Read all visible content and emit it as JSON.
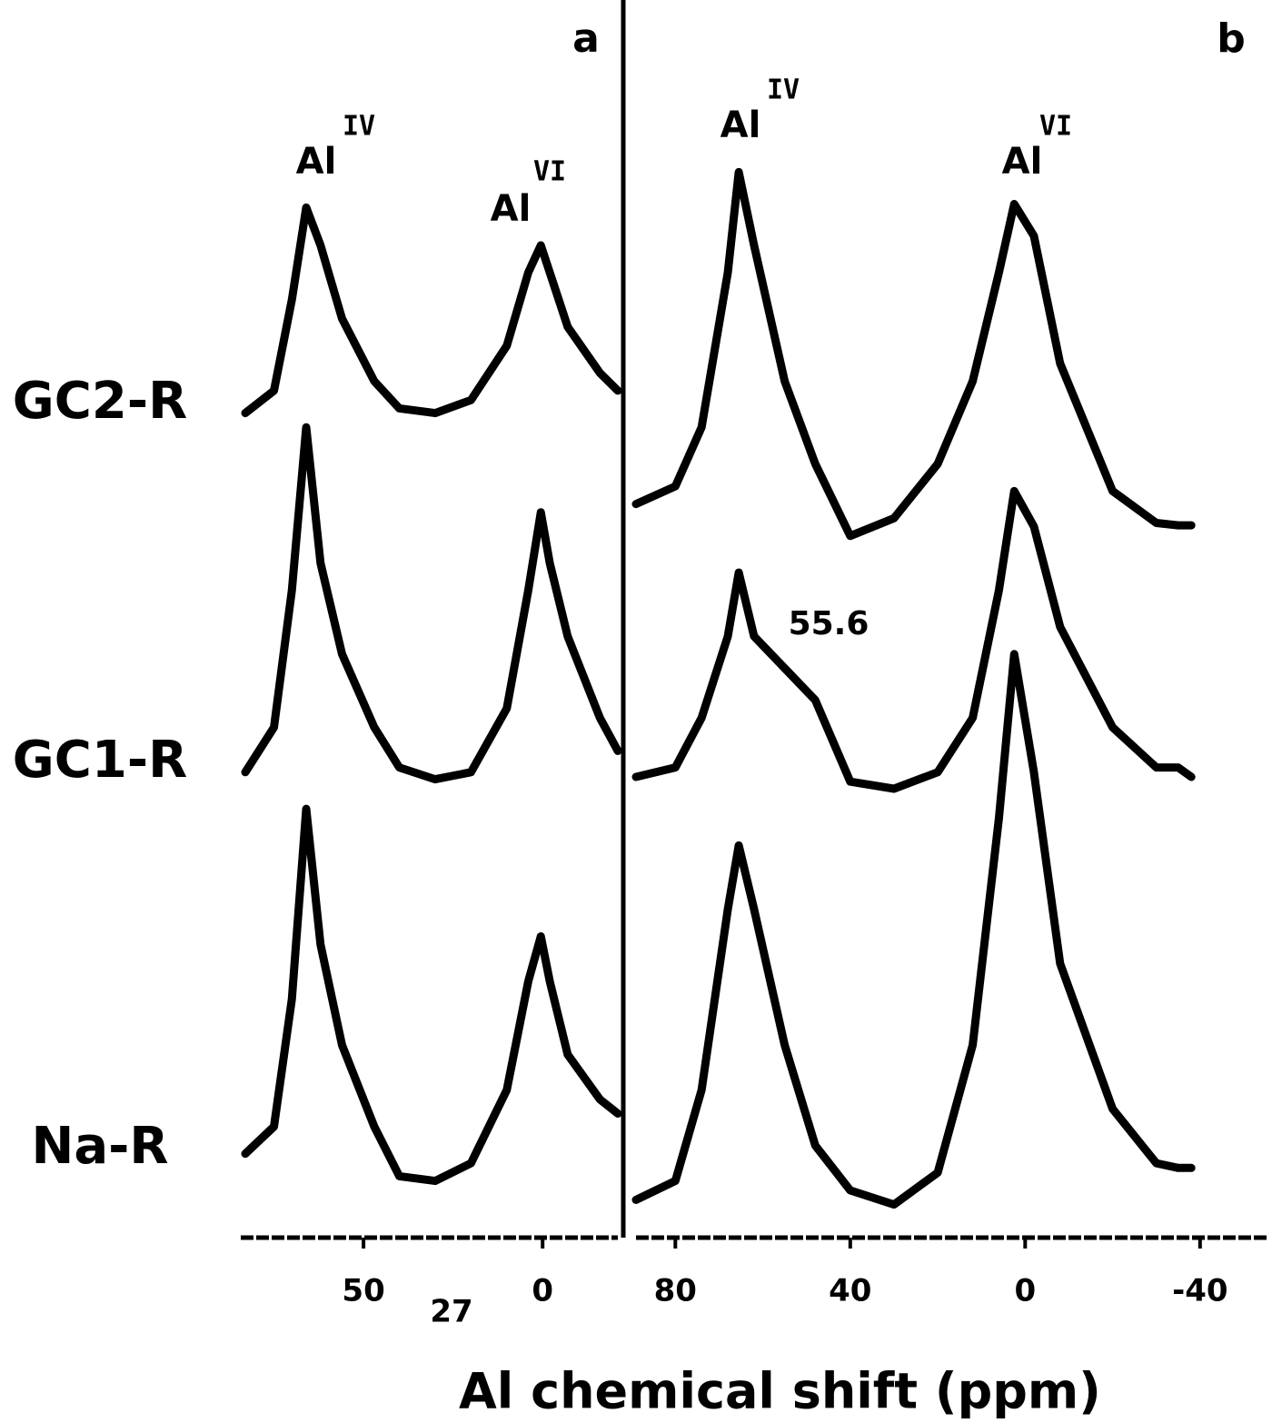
{
  "chart_data": [
    {
      "type": "line",
      "panel": "a",
      "xlabel": "Al chemical shift (ppm)",
      "xlabel_sup": "27",
      "x": [
        83,
        75,
        70,
        66,
        62,
        56,
        47,
        40,
        30,
        20,
        10,
        4,
        0.5,
        -2,
        -7,
        -16,
        -21
      ],
      "xlim": [
        83,
        -21
      ],
      "xticks": [
        50,
        0
      ],
      "ylim": [
        0,
        100
      ],
      "annotations": [
        {
          "text": "Al",
          "sup": "IV"
        },
        {
          "text": "Al",
          "sup": "VI"
        }
      ],
      "series": [
        {
          "name": "GC2-R",
          "color": "#000000",
          "values": [
            69.8,
            71.7,
            79.4,
            87.2,
            84.0,
            77.8,
            72.5,
            70.2,
            69.8,
            70.9,
            75.5,
            81.7,
            84.0,
            81.7,
            77.1,
            73.2,
            71.7
          ]
        },
        {
          "name": "GC1-R",
          "color": "#000000",
          "values": [
            39.4,
            43.2,
            54.8,
            68.6,
            57.1,
            49.4,
            43.2,
            39.8,
            38.8,
            39.4,
            44.8,
            54.8,
            61.4,
            57.1,
            50.9,
            44.0,
            41.2
          ]
        },
        {
          "name": "Na-R",
          "color": "#000000",
          "values": [
            7.1,
            9.4,
            20.2,
            36.3,
            24.8,
            16.3,
            9.4,
            5.2,
            4.8,
            6.3,
            12.5,
            21.7,
            25.5,
            21.7,
            15.5,
            11.7,
            10.5
          ]
        }
      ]
    },
    {
      "type": "line",
      "panel": "b",
      "x": [
        89,
        80,
        74,
        68,
        65.5,
        62,
        55,
        48,
        40,
        30,
        20,
        12,
        6,
        2.5,
        -2,
        -8,
        -20,
        -30,
        -35,
        -38
      ],
      "xlim": [
        89,
        -55
      ],
      "xticks": [
        80,
        40,
        0,
        -40
      ],
      "ylim": [
        0,
        100
      ],
      "annotations": [
        {
          "text": "Al",
          "sup": "IV"
        },
        {
          "text": "Al",
          "sup": "VI"
        },
        {
          "text": "55.6"
        }
      ],
      "series": [
        {
          "color": "#000000",
          "values": [
            62.1,
            63.6,
            68.6,
            81.7,
            90.2,
            84.0,
            72.5,
            65.5,
            59.4,
            60.9,
            65.5,
            72.5,
            81.7,
            87.5,
            84.8,
            74.0,
            63.2,
            60.5,
            60.3,
            60.3
          ]
        },
        {
          "color": "#000000",
          "values": [
            39.0,
            39.8,
            44.0,
            50.9,
            56.3,
            50.9,
            48.2,
            45.5,
            38.6,
            38.0,
            39.4,
            44.0,
            54.8,
            63.2,
            60.2,
            51.7,
            43.2,
            39.8,
            39.8,
            39.0
          ]
        },
        {
          "color": "#000000",
          "values": [
            3.2,
            4.8,
            12.5,
            27.8,
            33.2,
            27.8,
            16.3,
            7.8,
            4.0,
            2.8,
            5.5,
            16.3,
            35.5,
            49.4,
            39.4,
            23.2,
            10.9,
            6.3,
            5.9,
            5.9
          ]
        }
      ]
    }
  ]
}
